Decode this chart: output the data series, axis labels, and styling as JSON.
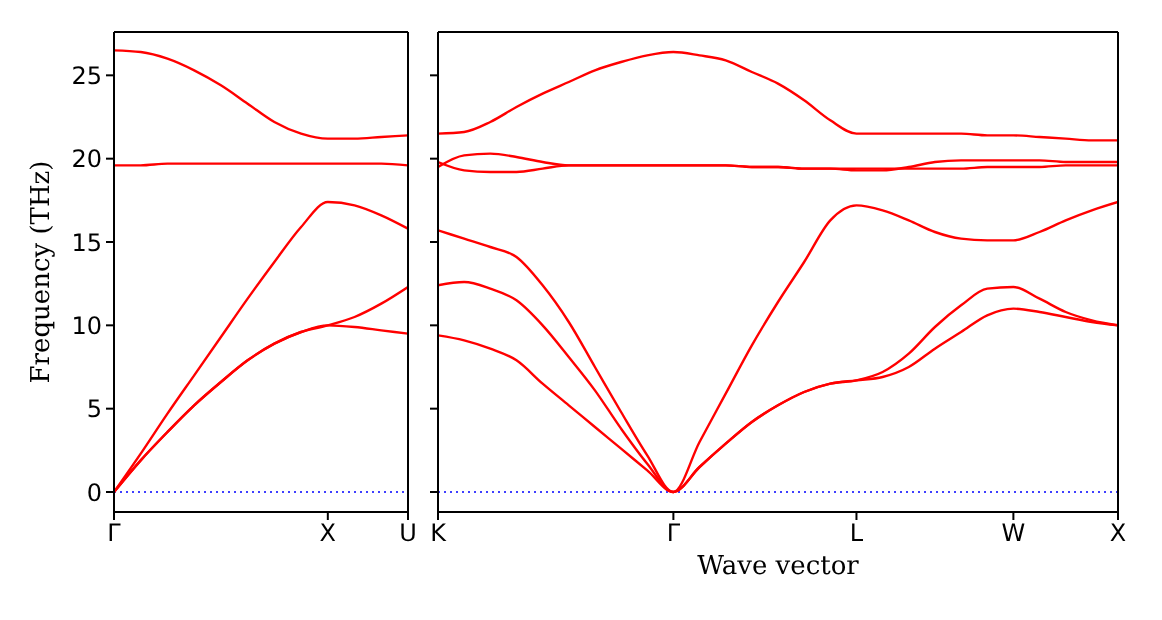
{
  "chart_data": [
    {
      "type": "line",
      "ylabel": "Frequency (THz)",
      "categories": [
        "Γ",
        null,
        null,
        null,
        null,
        null,
        null,
        null,
        "X",
        null,
        null,
        "U"
      ],
      "ylim": [
        -1.2,
        27.6
      ],
      "yticks": [
        0,
        5,
        10,
        15,
        20,
        25
      ],
      "marker": "none",
      "line_style": "solid",
      "series": [
        {
          "color": "#ff0000",
          "values": [
            0,
            1.9,
            3.6,
            5.2,
            6.6,
            7.9,
            8.9,
            9.6,
            10.0,
            9.9,
            9.7,
            9.5
          ]
        },
        {
          "color": "#ff0000",
          "values": [
            0,
            1.9,
            3.6,
            5.2,
            6.6,
            7.9,
            8.9,
            9.6,
            10.0,
            10.5,
            11.3,
            12.3
          ]
        },
        {
          "color": "#ff0000",
          "values": [
            0,
            2.3,
            4.7,
            7.0,
            9.3,
            11.6,
            13.8,
            15.9,
            17.4,
            17.2,
            16.6,
            15.8
          ]
        },
        {
          "color": "#ff0000",
          "values": [
            19.6,
            19.6,
            19.7,
            19.7,
            19.7,
            19.7,
            19.7,
            19.7,
            19.7,
            19.7,
            19.7,
            19.6
          ]
        },
        {
          "color": "#ff0000",
          "values": [
            26.5,
            26.4,
            26.0,
            25.3,
            24.4,
            23.3,
            22.2,
            21.5,
            21.2,
            21.2,
            21.3,
            21.4
          ]
        }
      ],
      "ref_lines": [
        {
          "axis": "y",
          "value": 0,
          "color": "#0000ff",
          "line_style": "dotted"
        }
      ]
    },
    {
      "type": "line",
      "xlabel": "Wave vector",
      "categories": [
        "K",
        null,
        null,
        null,
        null,
        null,
        null,
        null,
        null,
        "Γ",
        null,
        null,
        null,
        null,
        null,
        null,
        "L",
        null,
        null,
        null,
        null,
        null,
        "W",
        null,
        null,
        null,
        "X"
      ],
      "ylim": [
        -1.2,
        27.6
      ],
      "yticks": [
        {
          "value": 0,
          "label": null
        },
        {
          "value": 5,
          "label": null
        },
        {
          "value": 10,
          "label": null
        },
        {
          "value": 15,
          "label": null
        },
        {
          "value": 20,
          "label": null
        },
        {
          "value": 25,
          "label": null
        }
      ],
      "tick_labels": "x",
      "marker": "none",
      "line_style": "solid",
      "series": [
        {
          "color": "#ff0000",
          "values": [
            9.4,
            9.1,
            8.6,
            7.9,
            6.5,
            5.2,
            3.9,
            2.6,
            1.3,
            0,
            1.5,
            2.9,
            4.2,
            5.2,
            6.0,
            6.5,
            6.7,
            6.9,
            7.5,
            8.6,
            9.6,
            10.6,
            11.0,
            10.8,
            10.5,
            10.2,
            10.0
          ]
        },
        {
          "color": "#ff0000",
          "values": [
            12.4,
            12.6,
            12.2,
            11.5,
            10.0,
            8.1,
            6.1,
            3.8,
            1.7,
            0,
            1.5,
            2.9,
            4.2,
            5.2,
            6.0,
            6.5,
            6.7,
            7.2,
            8.3,
            9.9,
            11.2,
            12.2,
            12.3,
            11.6,
            10.8,
            10.3,
            10.0
          ]
        },
        {
          "color": "#ff0000",
          "values": [
            15.7,
            15.2,
            14.7,
            14.1,
            12.4,
            10.2,
            7.5,
            4.8,
            2.2,
            0,
            3.0,
            5.9,
            8.8,
            11.4,
            13.8,
            16.3,
            17.2,
            16.9,
            16.3,
            15.6,
            15.2,
            15.1,
            15.1,
            15.6,
            16.3,
            16.9,
            17.4
          ]
        },
        {
          "color": "#ff0000",
          "values": [
            19.5,
            20.2,
            20.3,
            20.1,
            19.8,
            19.6,
            19.6,
            19.6,
            19.6,
            19.6,
            19.6,
            19.6,
            19.5,
            19.5,
            19.4,
            19.4,
            19.3,
            19.3,
            19.5,
            19.8,
            19.9,
            19.9,
            19.9,
            19.9,
            19.8,
            19.8,
            19.8
          ]
        },
        {
          "color": "#ff0000",
          "values": [
            19.8,
            19.3,
            19.2,
            19.2,
            19.4,
            19.6,
            19.6,
            19.6,
            19.6,
            19.6,
            19.6,
            19.6,
            19.5,
            19.5,
            19.4,
            19.4,
            19.4,
            19.4,
            19.4,
            19.4,
            19.4,
            19.5,
            19.5,
            19.5,
            19.6,
            19.6,
            19.6
          ]
        },
        {
          "color": "#ff0000",
          "values": [
            21.5,
            21.6,
            22.2,
            23.1,
            23.9,
            24.6,
            25.3,
            25.8,
            26.2,
            26.4,
            26.2,
            25.9,
            25.2,
            24.5,
            23.5,
            22.3,
            21.5,
            21.5,
            21.5,
            21.5,
            21.5,
            21.4,
            21.4,
            21.3,
            21.2,
            21.1,
            21.1
          ]
        }
      ],
      "ref_lines": [
        {
          "axis": "y",
          "value": 0,
          "color": "#0000ff",
          "line_style": "dotted"
        }
      ]
    }
  ]
}
